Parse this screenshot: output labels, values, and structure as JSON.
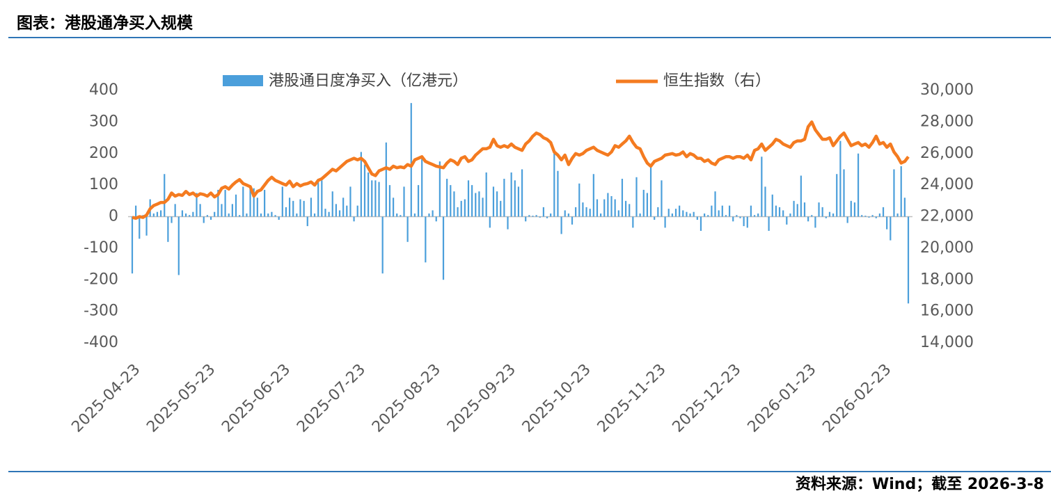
{
  "chart_data": {
    "type": "combo",
    "title": "图表：港股通净买入规模",
    "source": "资料来源：Wind；截至 2026-3-8",
    "categories": [
      "2025-04-23",
      null,
      null,
      null,
      null,
      null,
      null,
      null,
      null,
      null,
      null,
      null,
      null,
      null,
      null,
      null,
      null,
      null,
      null,
      null,
      null,
      "2025-05-23",
      null,
      null,
      null,
      null,
      null,
      null,
      null,
      null,
      null,
      null,
      null,
      null,
      null,
      null,
      null,
      null,
      null,
      null,
      null,
      null,
      "2025-06-23",
      null,
      null,
      null,
      null,
      null,
      null,
      null,
      null,
      null,
      null,
      null,
      null,
      null,
      null,
      null,
      null,
      null,
      null,
      null,
      null,
      "2025-07-23",
      null,
      null,
      null,
      null,
      null,
      null,
      null,
      null,
      null,
      null,
      null,
      null,
      null,
      null,
      null,
      null,
      null,
      null,
      null,
      null,
      "2025-08-23",
      null,
      null,
      null,
      null,
      null,
      null,
      null,
      null,
      null,
      null,
      null,
      null,
      null,
      null,
      null,
      null,
      null,
      null,
      null,
      null,
      "2025-09-23",
      null,
      null,
      null,
      null,
      null,
      null,
      null,
      null,
      null,
      null,
      null,
      null,
      null,
      null,
      null,
      null,
      null,
      null,
      null,
      null,
      "2025-10-23",
      null,
      null,
      null,
      null,
      null,
      null,
      null,
      null,
      null,
      null,
      null,
      null,
      null,
      null,
      null,
      null,
      null,
      null,
      null,
      null,
      "2025-11-23",
      null,
      null,
      null,
      null,
      null,
      null,
      null,
      null,
      null,
      null,
      null,
      null,
      null,
      null,
      null,
      null,
      null,
      null,
      null,
      null,
      "2025-12-23",
      null,
      null,
      null,
      null,
      null,
      null,
      null,
      null,
      null,
      null,
      null,
      null,
      null,
      null,
      null,
      null,
      null,
      null,
      null,
      null,
      "2026-01-23",
      null,
      null,
      null,
      null,
      null,
      null,
      null,
      null,
      null,
      null,
      null,
      null,
      null,
      null,
      null,
      null,
      null,
      null,
      null,
      null,
      "2026-02-23",
      null,
      null,
      null,
      null,
      null,
      null,
      null
    ],
    "series": [
      {
        "name": "港股通日度净买入（亿港元）",
        "type": "bar",
        "axis": "y",
        "color": "#4b9fdb",
        "values": [
          -180,
          35,
          -70,
          5,
          -60,
          55,
          10,
          15,
          20,
          135,
          -80,
          -20,
          40,
          -185,
          20,
          10,
          5,
          15,
          75,
          40,
          -20,
          5,
          -10,
          15,
          85,
          40,
          85,
          10,
          40,
          70,
          5,
          95,
          10,
          100,
          90,
          60,
          10,
          85,
          10,
          15,
          5,
          -10,
          95,
          30,
          60,
          50,
          10,
          55,
          50,
          -30,
          60,
          10,
          120,
          115,
          25,
          15,
          80,
          40,
          20,
          60,
          35,
          95,
          -15,
          35,
          205,
          165,
          140,
          115,
          115,
          110,
          -180,
          235,
          100,
          60,
          10,
          5,
          95,
          -80,
          360,
          10,
          100,
          185,
          -145,
          10,
          20,
          -15,
          175,
          -200,
          120,
          100,
          80,
          30,
          50,
          55,
          115,
          100,
          75,
          80,
          60,
          140,
          -35,
          95,
          80,
          50,
          120,
          -40,
          140,
          115,
          95,
          150,
          -15,
          5,
          3,
          5,
          -3,
          30,
          -5,
          10,
          205,
          145,
          -55,
          20,
          10,
          -25,
          30,
          105,
          45,
          30,
          25,
          135,
          55,
          10,
          55,
          75,
          65,
          55,
          20,
          120,
          50,
          40,
          -35,
          125,
          10,
          85,
          75,
          165,
          -10,
          30,
          115,
          -35,
          25,
          10,
          25,
          35,
          20,
          15,
          10,
          15,
          -10,
          -45,
          10,
          5,
          35,
          80,
          20,
          35,
          5,
          35,
          -15,
          5,
          -5,
          -30,
          -35,
          35,
          5,
          10,
          190,
          95,
          -45,
          70,
          35,
          30,
          20,
          -25,
          10,
          50,
          40,
          130,
          45,
          -15,
          5,
          -35,
          45,
          30,
          -5,
          15,
          10,
          135,
          240,
          150,
          -20,
          50,
          45,
          200,
          5,
          3,
          -3,
          5,
          -5,
          10,
          30,
          -40,
          -75,
          150,
          10,
          160,
          60,
          -275
        ]
      },
      {
        "name": "恒生指数（右）",
        "type": "line",
        "axis": "y2",
        "color": "#f47b20",
        "values": [
          21950,
          21900,
          22000,
          21950,
          22100,
          22500,
          22700,
          22800,
          22900,
          22900,
          23100,
          23500,
          23300,
          23400,
          23350,
          23600,
          23400,
          23500,
          23300,
          23450,
          23400,
          23300,
          23500,
          23250,
          23400,
          23800,
          23900,
          23750,
          24000,
          24200,
          24350,
          24100,
          24000,
          23900,
          23300,
          23600,
          23700,
          24000,
          24300,
          24500,
          24300,
          24200,
          24100,
          24000,
          24250,
          23900,
          24100,
          23950,
          24050,
          24100,
          24200,
          24000,
          24300,
          24400,
          24600,
          24800,
          25000,
          24900,
          25100,
          25300,
          25500,
          25600,
          25700,
          25600,
          25700,
          25500,
          25100,
          24700,
          24600,
          24900,
          25000,
          25100,
          25000,
          25200,
          25100,
          25150,
          25100,
          25300,
          25200,
          25600,
          25700,
          25800,
          25500,
          25400,
          25300,
          25200,
          25150,
          25100,
          25400,
          25600,
          25500,
          25300,
          25700,
          25800,
          25500,
          25600,
          25900,
          26100,
          26300,
          26300,
          26400,
          26900,
          26500,
          26400,
          26500,
          26400,
          26600,
          26400,
          26300,
          26200,
          26600,
          26800,
          27100,
          27300,
          27200,
          27000,
          26900,
          26700,
          26100,
          25900,
          25600,
          25900,
          25300,
          25700,
          26000,
          25900,
          26000,
          26200,
          26300,
          26400,
          26200,
          26100,
          26000,
          25900,
          26100,
          26500,
          26400,
          26600,
          26800,
          27100,
          26700,
          26400,
          26300,
          25800,
          25400,
          25200,
          25500,
          25600,
          25700,
          25900,
          25950,
          26000,
          25900,
          25950,
          26100,
          25800,
          26000,
          25900,
          25700,
          25700,
          25500,
          25600,
          25400,
          25300,
          25600,
          25700,
          25800,
          25800,
          25700,
          25800,
          25800,
          25700,
          25900,
          25600,
          26200,
          26300,
          26600,
          26200,
          26400,
          26600,
          26900,
          26800,
          26600,
          26500,
          26400,
          26700,
          26800,
          26800,
          26900,
          27700,
          28000,
          27500,
          27200,
          26900,
          26900,
          27000,
          26500,
          26800,
          27100,
          27300,
          26900,
          26500,
          26600,
          26700,
          26500,
          26600,
          26400,
          26700,
          27100,
          26600,
          26700,
          26400,
          26600,
          26100,
          25800,
          25400,
          25500,
          25800
        ]
      }
    ],
    "ylim": [
      -400,
      400
    ],
    "yticks": [
      -400,
      -300,
      -200,
      -100,
      0,
      100,
      200,
      300,
      400
    ],
    "y2lim": [
      14000,
      30000
    ],
    "y2ticks": [
      {
        "value": 14000,
        "label": "14,000"
      },
      {
        "value": 16000,
        "label": "16,000"
      },
      {
        "value": 18000,
        "label": "18,000"
      },
      {
        "value": 20000,
        "label": "20,000"
      },
      {
        "value": 22000,
        "label": "22,000"
      },
      {
        "value": 24000,
        "label": "24,000"
      },
      {
        "value": 26000,
        "label": "26,000"
      },
      {
        "value": 28000,
        "label": "28,000"
      },
      {
        "value": 30000,
        "label": "30,000"
      }
    ],
    "legend": "top"
  }
}
